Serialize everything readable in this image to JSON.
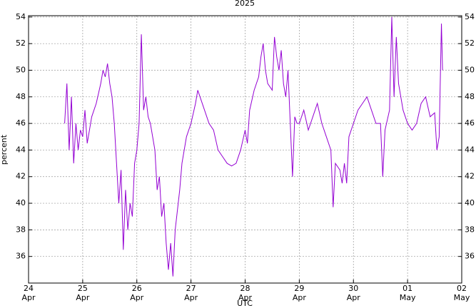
{
  "chart_data": {
    "type": "line",
    "title": "2025",
    "x_label": "UTC",
    "y_label": "percent",
    "series": [
      {
        "name": "percent",
        "color": "#9400d3",
        "x": [
          "2025-04-24T16:00",
          "2025-04-24T17:00",
          "2025-04-24T18:00",
          "2025-04-24T19:00",
          "2025-04-24T20:00",
          "2025-04-24T21:00",
          "2025-04-24T22:00",
          "2025-04-24T23:00",
          "2025-04-25T00:00",
          "2025-04-25T01:00",
          "2025-04-25T02:00",
          "2025-04-25T04:00",
          "2025-04-25T06:00",
          "2025-04-25T08:00",
          "2025-04-25T09:00",
          "2025-04-25T10:00",
          "2025-04-25T11:00",
          "2025-04-25T12:00",
          "2025-04-25T13:00",
          "2025-04-25T14:00",
          "2025-04-25T15:00",
          "2025-04-25T16:00",
          "2025-04-25T17:00",
          "2025-04-25T18:00",
          "2025-04-25T19:00",
          "2025-04-25T20:00",
          "2025-04-25T21:00",
          "2025-04-25T22:00",
          "2025-04-25T23:00",
          "2025-04-26T00:00",
          "2025-04-26T01:00",
          "2025-04-26T02:00",
          "2025-04-26T03:00",
          "2025-04-26T04:00",
          "2025-04-26T05:00",
          "2025-04-26T06:00",
          "2025-04-26T08:00",
          "2025-04-26T09:00",
          "2025-04-26T10:00",
          "2025-04-26T11:00",
          "2025-04-26T12:00",
          "2025-04-26T13:00",
          "2025-04-26T14:00",
          "2025-04-26T15:00",
          "2025-04-26T16:00",
          "2025-04-26T17:00",
          "2025-04-26T18:00",
          "2025-04-26T19:00",
          "2025-04-26T20:00",
          "2025-04-26T22:00",
          "2025-04-27T00:00",
          "2025-04-27T02:00",
          "2025-04-27T03:00",
          "2025-04-27T04:00",
          "2025-04-27T06:00",
          "2025-04-27T08:00",
          "2025-04-27T10:00",
          "2025-04-27T12:00",
          "2025-04-27T14:00",
          "2025-04-27T16:00",
          "2025-04-27T18:00",
          "2025-04-27T20:00",
          "2025-04-27T22:00",
          "2025-04-28T00:00",
          "2025-04-28T01:00",
          "2025-04-28T02:00",
          "2025-04-28T04:00",
          "2025-04-28T06:00",
          "2025-04-28T07:00",
          "2025-04-28T08:00",
          "2025-04-28T09:00",
          "2025-04-28T10:00",
          "2025-04-28T12:00",
          "2025-04-28T13:00",
          "2025-04-28T14:00",
          "2025-04-28T15:00",
          "2025-04-28T16:00",
          "2025-04-28T17:00",
          "2025-04-28T18:00",
          "2025-04-28T19:00",
          "2025-04-28T20:00",
          "2025-04-28T21:00",
          "2025-04-28T22:00",
          "2025-04-28T23:00",
          "2025-04-29T00:00",
          "2025-04-29T02:00",
          "2025-04-29T04:00",
          "2025-04-29T06:00",
          "2025-04-29T08:00",
          "2025-04-29T10:00",
          "2025-04-29T12:00",
          "2025-04-29T14:00",
          "2025-04-29T15:00",
          "2025-04-29T16:00",
          "2025-04-29T18:00",
          "2025-04-29T19:00",
          "2025-04-29T20:00",
          "2025-04-29T21:00",
          "2025-04-29T22:00",
          "2025-04-30T00:00",
          "2025-04-30T02:00",
          "2025-04-30T04:00",
          "2025-04-30T06:00",
          "2025-04-30T08:00",
          "2025-04-30T10:00",
          "2025-04-30T12:00",
          "2025-04-30T13:00",
          "2025-04-30T14:00",
          "2025-04-30T16:00",
          "2025-04-30T17:00",
          "2025-04-30T18:00",
          "2025-04-30T19:00",
          "2025-04-30T20:00",
          "2025-04-30T22:00",
          "2025-05-01T00:00",
          "2025-05-01T02:00",
          "2025-05-01T04:00",
          "2025-05-01T06:00",
          "2025-05-01T08:00",
          "2025-05-01T10:00",
          "2025-05-01T12:00",
          "2025-05-01T13:00",
          "2025-05-01T14:00",
          "2025-05-01T15:00",
          "2025-05-01T15:30"
        ],
        "values": [
          46,
          49,
          44,
          48,
          43,
          46,
          44,
          45.5,
          45,
          47,
          44.5,
          46.5,
          47.5,
          49,
          50,
          49.5,
          50.5,
          49,
          48,
          46,
          43,
          40,
          42.5,
          36.5,
          41,
          38,
          40,
          39,
          43,
          44,
          46,
          52.7,
          47,
          48,
          46.5,
          46,
          44,
          41,
          42,
          39,
          40,
          37,
          35,
          37,
          34.5,
          38,
          39.5,
          41,
          43,
          45,
          46,
          47.5,
          48.5,
          48,
          47,
          46,
          45.5,
          44,
          43.5,
          43,
          42.8,
          43,
          44,
          45.5,
          44.5,
          47,
          48.5,
          49.5,
          51,
          52,
          50,
          49,
          48.5,
          52.5,
          51,
          50,
          51.5,
          49,
          48,
          50,
          46,
          42,
          46.5,
          46,
          46,
          47,
          45.5,
          46.5,
          47.5,
          46,
          45,
          44,
          39.7,
          43,
          42.5,
          41.5,
          43,
          41.5,
          45,
          46,
          47,
          47.5,
          48,
          47,
          46,
          46,
          42,
          45.5,
          47,
          54,
          48,
          52.5,
          49,
          47,
          46,
          45.5,
          46,
          47.5,
          48,
          46.5,
          46.8,
          44,
          45,
          53.5,
          50
        ]
      }
    ],
    "xlim": [
      "2025-04-24T00:00",
      "2025-05-02T00:00"
    ],
    "xticks": [
      {
        "value": "2025-04-24T00:00",
        "label": "24 Apr"
      },
      {
        "value": "2025-04-25T00:00",
        "label": "25 Apr"
      },
      {
        "value": "2025-04-26T00:00",
        "label": "26 Apr"
      },
      {
        "value": "2025-04-27T00:00",
        "label": "27 Apr"
      },
      {
        "value": "2025-04-28T00:00",
        "label": "28 Apr"
      },
      {
        "value": "2025-04-29T00:00",
        "label": "29 Apr"
      },
      {
        "value": "2025-04-30T00:00",
        "label": "30 Apr"
      },
      {
        "value": "2025-05-01T00:00",
        "label": "01 May"
      },
      {
        "value": "2025-05-02T00:00",
        "label": "02 May"
      }
    ],
    "ylim": [
      34,
      54.1
    ],
    "yticks": [
      36,
      38,
      40,
      42,
      44,
      46,
      48,
      50,
      52,
      54
    ],
    "y2lim": [
      34,
      54.1
    ],
    "y2ticks": [
      36,
      38,
      40,
      42,
      44,
      46,
      48,
      50,
      52,
      54
    ],
    "grid": true
  }
}
